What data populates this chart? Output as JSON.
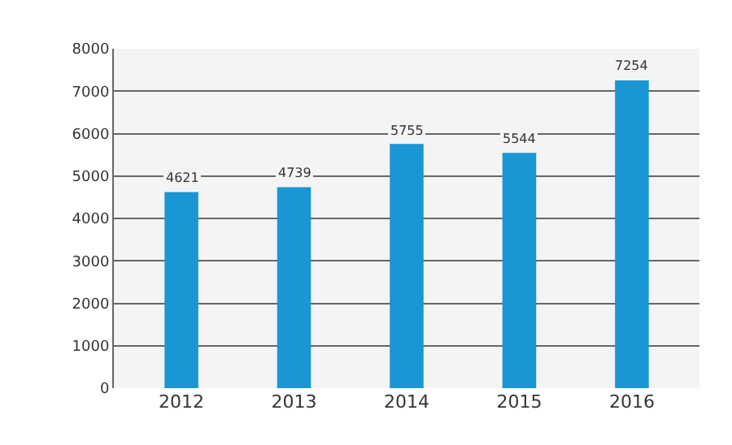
{
  "chart_data": {
    "type": "bar",
    "categories": [
      "2012",
      "2013",
      "2014",
      "2015",
      "2016"
    ],
    "values": [
      4621,
      4739,
      5755,
      5544,
      7254
    ],
    "color": "#1a96d4",
    "ylim": [
      0,
      8000
    ],
    "yticks": [
      0,
      1000,
      2000,
      3000,
      4000,
      5000,
      6000,
      7000,
      8000
    ],
    "grid": "y",
    "data_labels": true,
    "legend": false
  }
}
